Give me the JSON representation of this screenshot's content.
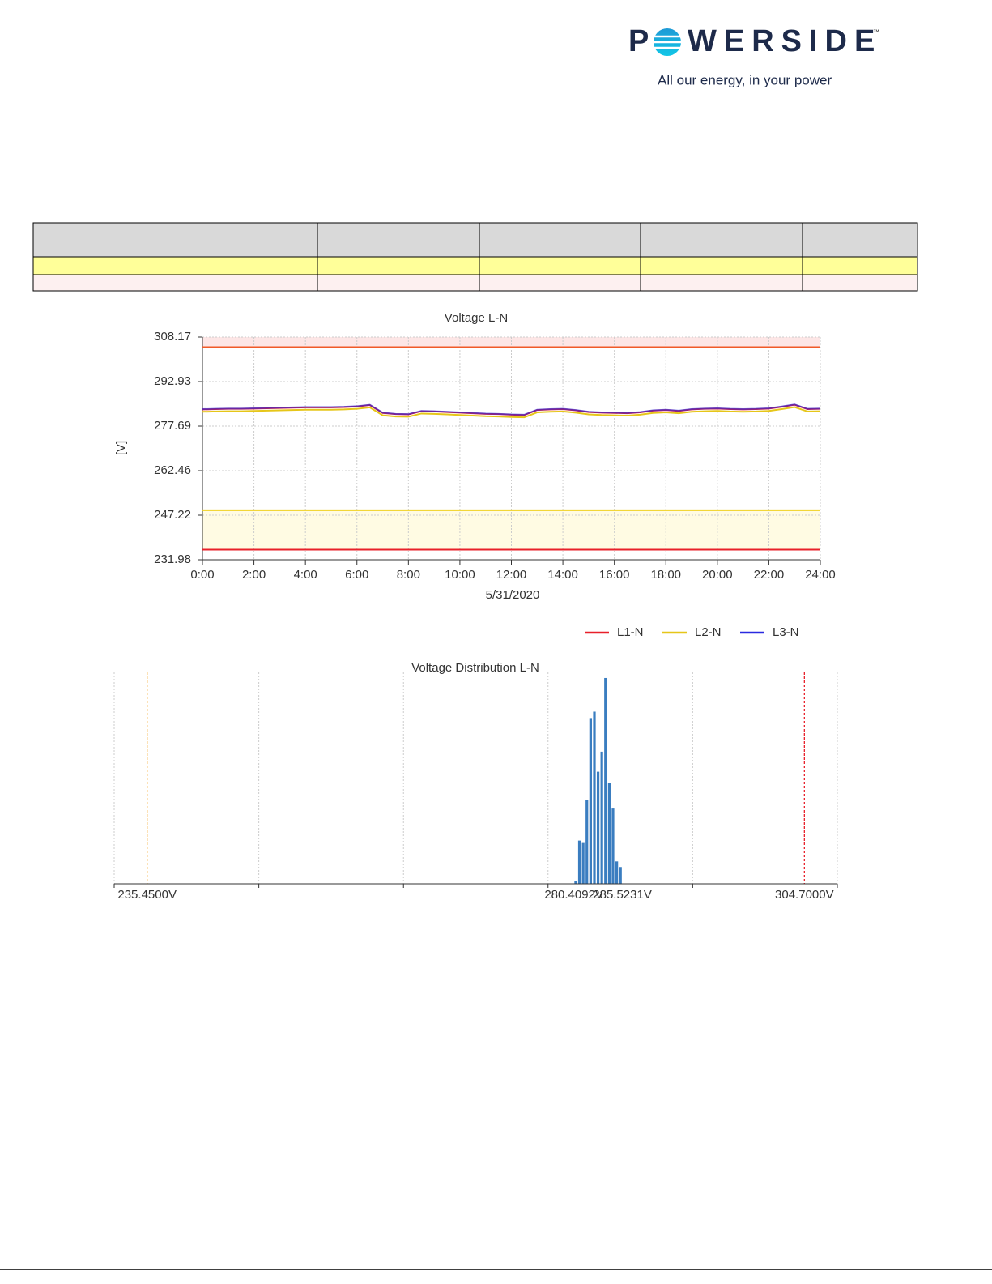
{
  "header": {
    "logo_left": "P",
    "logo_right": "WERSIDE",
    "logo_mark": "™",
    "tagline": "All our energy, in your power"
  },
  "chart_data": [
    {
      "type": "line",
      "title": "Voltage L-N",
      "y_label": "[V]",
      "x_label": "5/31/2020",
      "xlim": [
        0,
        24
      ],
      "xticks": [
        {
          "value": 0,
          "label": "0:00"
        },
        {
          "value": 2,
          "label": "2:00"
        },
        {
          "value": 4,
          "label": "4:00"
        },
        {
          "value": 6,
          "label": "6:00"
        },
        {
          "value": 8,
          "label": "8:00"
        },
        {
          "value": 10,
          "label": "10:00"
        },
        {
          "value": 12,
          "label": "12:00"
        },
        {
          "value": 14,
          "label": "14:00"
        },
        {
          "value": 16,
          "label": "16:00"
        },
        {
          "value": 18,
          "label": "18:00"
        },
        {
          "value": 20,
          "label": "20:00"
        },
        {
          "value": 22,
          "label": "22:00"
        },
        {
          "value": 24,
          "label": "24:00"
        }
      ],
      "ylim": [
        231.98,
        308.17
      ],
      "yticks": [
        231.98,
        247.22,
        262.46,
        277.69,
        292.93,
        308.17
      ],
      "grid": true,
      "legend": "bottom-right",
      "bands": [
        {
          "from": 304.7,
          "to": 308.17,
          "color": "#fde6e6"
        },
        {
          "from": 235.45,
          "to": 248.9,
          "color": "#fffbe3"
        }
      ],
      "thresholds": [
        {
          "value": 304.7,
          "color": "#f05a28"
        },
        {
          "value": 248.9,
          "color": "#f0d020"
        },
        {
          "value": 235.45,
          "color": "#e8202a"
        }
      ],
      "x": [
        0,
        0.5,
        1,
        1.5,
        2,
        2.5,
        3,
        3.5,
        4,
        4.5,
        5,
        5.5,
        6,
        6.5,
        7,
        7.5,
        8,
        8.5,
        9,
        9.5,
        10,
        10.5,
        11,
        11.5,
        12,
        12.5,
        13,
        13.5,
        14,
        14.5,
        15,
        15.5,
        16,
        16.5,
        17,
        17.5,
        18,
        18.5,
        19,
        19.5,
        20,
        20.5,
        21,
        21.5,
        22,
        22.5,
        23,
        23.5,
        24
      ],
      "series": [
        {
          "name": "L1-N",
          "color": "#e8202a",
          "values": [
            283.4,
            283.5,
            283.6,
            283.6,
            283.7,
            283.8,
            283.9,
            284.0,
            284.1,
            284.1,
            284.1,
            284.2,
            284.4,
            284.9,
            282.2,
            281.8,
            281.7,
            282.8,
            282.7,
            282.5,
            282.3,
            282.1,
            281.9,
            281.8,
            281.6,
            281.5,
            283.2,
            283.4,
            283.5,
            283.1,
            282.5,
            282.3,
            282.2,
            282.1,
            282.4,
            283.0,
            283.2,
            282.9,
            283.4,
            283.6,
            283.7,
            283.5,
            283.4,
            283.5,
            283.7,
            284.3,
            285.0,
            283.5,
            283.6
          ]
        },
        {
          "name": "L2-N",
          "color": "#e6c619",
          "values": [
            282.6,
            282.7,
            282.8,
            282.8,
            282.9,
            283.0,
            283.1,
            283.2,
            283.3,
            283.3,
            283.3,
            283.4,
            283.6,
            284.1,
            281.4,
            281.0,
            280.9,
            282.0,
            281.9,
            281.7,
            281.5,
            281.3,
            281.1,
            281.0,
            280.8,
            280.7,
            282.4,
            282.6,
            282.7,
            282.3,
            281.7,
            281.5,
            281.4,
            281.3,
            281.6,
            282.2,
            282.4,
            282.1,
            282.6,
            282.8,
            282.9,
            282.7,
            282.6,
            282.7,
            282.9,
            283.5,
            284.2,
            282.7,
            282.8
          ]
        },
        {
          "name": "L3-N",
          "color": "#2a2ae0",
          "values": [
            283.5,
            283.6,
            283.7,
            283.7,
            283.8,
            283.9,
            284.0,
            284.1,
            284.2,
            284.2,
            284.2,
            284.3,
            284.5,
            285.0,
            282.3,
            281.9,
            281.8,
            282.9,
            282.8,
            282.6,
            282.4,
            282.2,
            282.0,
            281.9,
            281.7,
            281.6,
            283.3,
            283.5,
            283.6,
            283.2,
            282.6,
            282.4,
            282.3,
            282.2,
            282.5,
            283.1,
            283.3,
            283.0,
            283.5,
            283.7,
            283.8,
            283.6,
            283.5,
            283.6,
            283.8,
            284.4,
            285.1,
            283.6,
            283.7
          ]
        }
      ]
    },
    {
      "type": "histogram",
      "title": "Voltage Distribution L-N",
      "color": "#3a7dc0",
      "xlim": [
        231.98,
        308.17
      ],
      "xticks": [
        231.98,
        247.22,
        262.46,
        277.69,
        292.93,
        308.17
      ],
      "xlabels": [
        {
          "value": 235.45,
          "label": "235.4500V"
        },
        {
          "value": 280.4092,
          "label": "280.4092V"
        },
        {
          "value": 285.5231,
          "label": "285.5231V"
        },
        {
          "value": 304.7,
          "label": "304.7000V"
        }
      ],
      "thresholds": [
        {
          "value": 235.45,
          "color": "#f5a623"
        },
        {
          "value": 304.7,
          "color": "#e8202a"
        }
      ],
      "ylim": [
        0,
        260
      ],
      "bins": [
        280.41,
        280.8,
        281.2,
        281.59,
        281.98,
        282.38,
        282.77,
        283.16,
        283.55,
        283.95,
        284.34,
        284.73,
        285.13,
        285.52
      ],
      "values": [
        4,
        54,
        51,
        105,
        207,
        215,
        140,
        165,
        257,
        126,
        94,
        28,
        21
      ]
    }
  ]
}
